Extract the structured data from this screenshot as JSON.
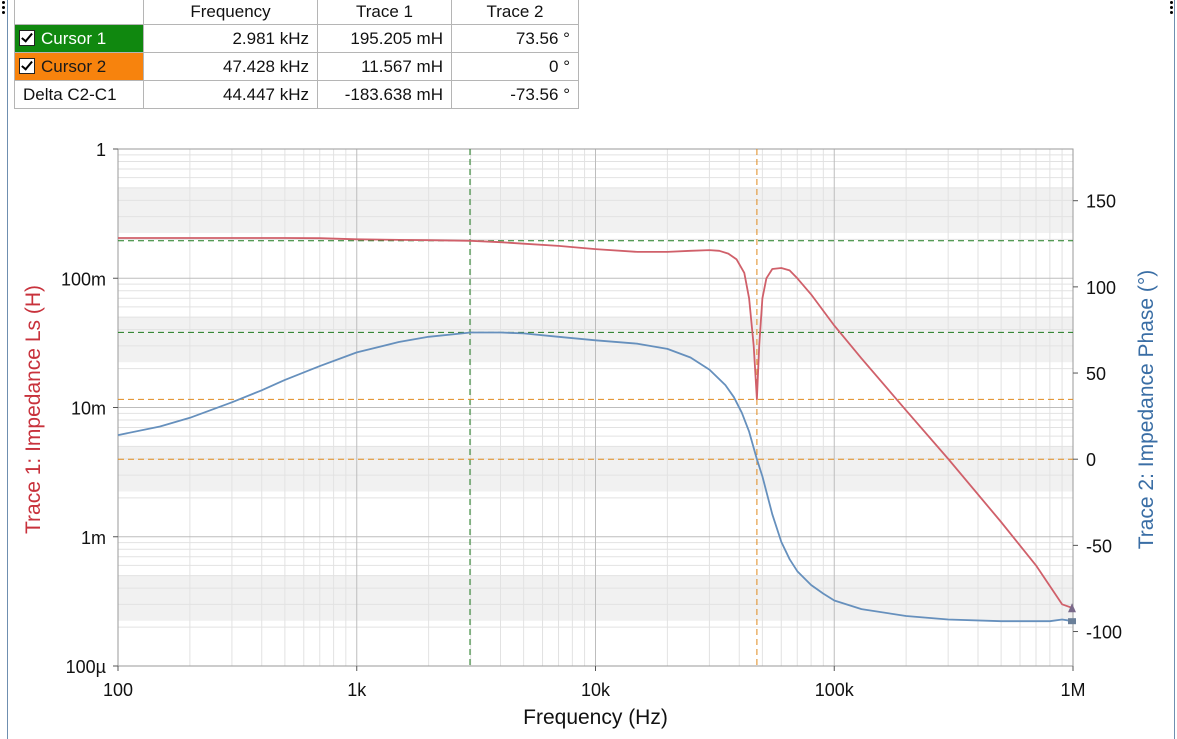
{
  "cursor_table": {
    "headers": [
      "",
      "Frequency",
      "Trace 1",
      "Trace 2"
    ],
    "rows": [
      {
        "name": "Cursor 1",
        "checked": true,
        "frequency": "2.981 kHz",
        "trace1": "195.205 mH",
        "trace2": "73.56 °"
      },
      {
        "name": "Cursor 2",
        "checked": true,
        "frequency": "47.428 kHz",
        "trace1": "11.567 mH",
        "trace2": "0 °"
      },
      {
        "name": "Delta C2-C1",
        "checked": false,
        "frequency": "44.447 kHz",
        "trace1": "-183.638 mH",
        "trace2": "-73.56 °"
      }
    ]
  },
  "chart_data": {
    "type": "line",
    "xlabel": "Frequency (Hz)",
    "ylabel_left": "Trace 1: Impedance Ls (H)",
    "ylabel_right": "Trace 2: Impedance Phase (°)",
    "x_scale": "log",
    "xlim": [
      100,
      1000000
    ],
    "x_ticks": [
      {
        "value": 100,
        "label": "100"
      },
      {
        "value": 1000,
        "label": "1k"
      },
      {
        "value": 10000,
        "label": "10k"
      },
      {
        "value": 100000,
        "label": "100k"
      },
      {
        "value": 1000000,
        "label": "1M"
      }
    ],
    "y_left_scale": "log",
    "ylim_left": [
      0.0001,
      1
    ],
    "y_left_ticks": [
      {
        "value": 1,
        "label": "1"
      },
      {
        "value": 0.1,
        "label": "100m"
      },
      {
        "value": 0.01,
        "label": "10m"
      },
      {
        "value": 0.001,
        "label": "1m"
      },
      {
        "value": 0.0001,
        "label": "100µ"
      }
    ],
    "ylim_right": [
      -120,
      180
    ],
    "y_right_ticks": [
      {
        "value": 150,
        "label": "150"
      },
      {
        "value": 100,
        "label": "100"
      },
      {
        "value": 50,
        "label": "50"
      },
      {
        "value": 0,
        "label": "0"
      },
      {
        "value": -50,
        "label": "-50"
      },
      {
        "value": -100,
        "label": "-100"
      }
    ],
    "grid": true,
    "colors": {
      "trace1": "#d0606a",
      "trace2": "#6690bd",
      "cursor1": "#1e7a1e",
      "cursor2": "#e08a1e",
      "axis_left_label": "#c8323c",
      "axis_right_label": "#3a6ea5"
    },
    "cursors": [
      {
        "name": "Cursor 1",
        "x": 2981,
        "trace1": 0.195205,
        "trace2": 73.56
      },
      {
        "name": "Cursor 2",
        "x": 47428,
        "trace1": 0.011567,
        "trace2": 0
      }
    ],
    "series": [
      {
        "name": "Trace 1",
        "axis": "left",
        "points": [
          [
            100,
            0.205
          ],
          [
            200,
            0.205
          ],
          [
            300,
            0.205
          ],
          [
            500,
            0.205
          ],
          [
            700,
            0.204
          ],
          [
            1000,
            0.2
          ],
          [
            1500,
            0.198
          ],
          [
            2000,
            0.197
          ],
          [
            3000,
            0.195
          ],
          [
            4000,
            0.19
          ],
          [
            5000,
            0.185
          ],
          [
            7000,
            0.178
          ],
          [
            10000,
            0.168
          ],
          [
            15000,
            0.16
          ],
          [
            20000,
            0.16
          ],
          [
            25000,
            0.163
          ],
          [
            30000,
            0.165
          ],
          [
            33000,
            0.163
          ],
          [
            36000,
            0.155
          ],
          [
            39000,
            0.14
          ],
          [
            42000,
            0.11
          ],
          [
            44000,
            0.07
          ],
          [
            46000,
            0.03
          ],
          [
            47428,
            0.0116
          ],
          [
            48500,
            0.03
          ],
          [
            50000,
            0.07
          ],
          [
            52000,
            0.1
          ],
          [
            55000,
            0.118
          ],
          [
            60000,
            0.12
          ],
          [
            65000,
            0.115
          ],
          [
            70000,
            0.1
          ],
          [
            80000,
            0.075
          ],
          [
            100000,
            0.043
          ],
          [
            130000,
            0.024
          ],
          [
            200000,
            0.0095
          ],
          [
            300000,
            0.004
          ],
          [
            500000,
            0.0013
          ],
          [
            700000,
            0.0006
          ],
          [
            900000,
            0.0003
          ],
          [
            1000000,
            0.00028
          ]
        ]
      },
      {
        "name": "Trace 2",
        "axis": "right",
        "points": [
          [
            100,
            14
          ],
          [
            150,
            19
          ],
          [
            200,
            24
          ],
          [
            300,
            33
          ],
          [
            400,
            40
          ],
          [
            500,
            46
          ],
          [
            700,
            54
          ],
          [
            1000,
            62
          ],
          [
            1500,
            68
          ],
          [
            2000,
            71
          ],
          [
            3000,
            73.5
          ],
          [
            4000,
            73.5
          ],
          [
            5000,
            73
          ],
          [
            7000,
            71
          ],
          [
            10000,
            69
          ],
          [
            15000,
            67
          ],
          [
            20000,
            64
          ],
          [
            25000,
            59
          ],
          [
            30000,
            52
          ],
          [
            35000,
            43
          ],
          [
            38000,
            36
          ],
          [
            41000,
            27
          ],
          [
            44000,
            16
          ],
          [
            47428,
            0
          ],
          [
            50000,
            -10
          ],
          [
            55000,
            -32
          ],
          [
            60000,
            -48
          ],
          [
            65000,
            -58
          ],
          [
            70000,
            -65
          ],
          [
            80000,
            -73
          ],
          [
            90000,
            -78
          ],
          [
            100000,
            -82
          ],
          [
            130000,
            -87
          ],
          [
            200000,
            -91
          ],
          [
            300000,
            -93
          ],
          [
            500000,
            -94
          ],
          [
            800000,
            -94
          ],
          [
            900000,
            -93
          ],
          [
            1000000,
            -94
          ]
        ]
      }
    ]
  }
}
